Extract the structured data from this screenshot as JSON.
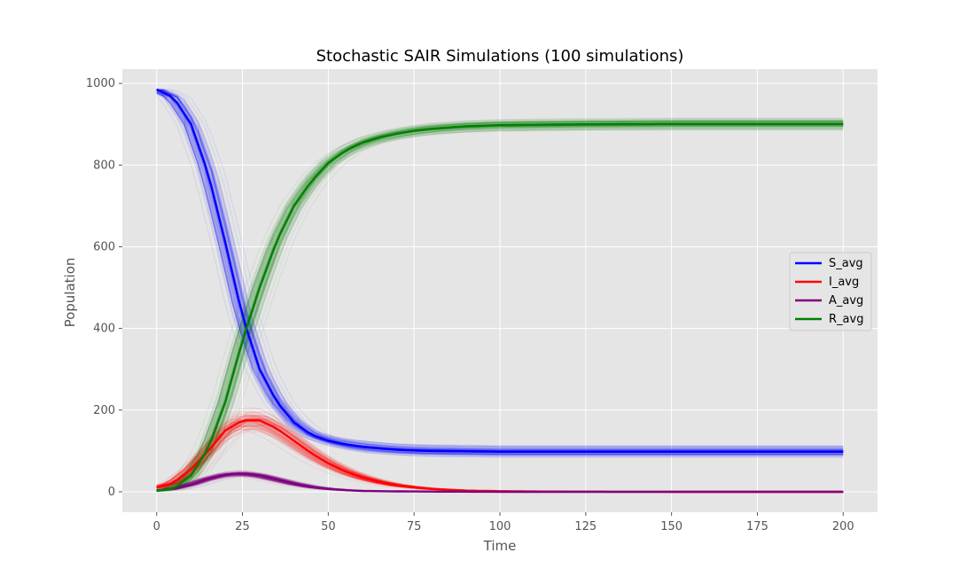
{
  "chart_data": {
    "type": "line",
    "title": "Stochastic SAIR Simulations (100 simulations)",
    "xlabel": "Time",
    "ylabel": "Population",
    "xlim": [
      -10,
      210
    ],
    "ylim": [
      -50,
      1035
    ],
    "xticks": [
      0,
      25,
      50,
      75,
      100,
      125,
      150,
      175,
      200
    ],
    "yticks": [
      0,
      200,
      400,
      600,
      800,
      1000
    ],
    "grid": true,
    "legend_position": "center-right",
    "n_simulations": 100,
    "series": [
      {
        "name": "S_avg",
        "color": "#0000ff",
        "x": [
          0,
          5,
          10,
          15,
          20,
          25,
          30,
          35,
          40,
          45,
          50,
          55,
          60,
          65,
          70,
          75,
          80,
          90,
          100,
          125,
          150,
          175,
          200
        ],
        "y": [
          985,
          965,
          900,
          780,
          610,
          430,
          300,
          220,
          170,
          140,
          125,
          116,
          110,
          106,
          103,
          101,
          100,
          99,
          98,
          98,
          98,
          98,
          98
        ]
      },
      {
        "name": "I_avg",
        "color": "#ff0000",
        "x": [
          0,
          5,
          10,
          15,
          20,
          25,
          30,
          35,
          40,
          45,
          50,
          55,
          60,
          65,
          70,
          75,
          80,
          90,
          100,
          110,
          125,
          150,
          175,
          200
        ],
        "y": [
          10,
          22,
          55,
          100,
          150,
          175,
          175,
          155,
          125,
          95,
          70,
          50,
          35,
          24,
          16,
          11,
          7,
          3,
          1.5,
          0.7,
          0.3,
          0,
          0,
          0
        ]
      },
      {
        "name": "A_avg",
        "color": "#800080",
        "x": [
          0,
          5,
          10,
          15,
          20,
          25,
          30,
          35,
          40,
          45,
          50,
          55,
          60,
          70,
          80,
          100,
          125,
          150,
          175,
          200
        ],
        "y": [
          3,
          8,
          18,
          32,
          42,
          45,
          40,
          30,
          20,
          12,
          7,
          4,
          2,
          1,
          0.5,
          0,
          0,
          0,
          0,
          0
        ]
      },
      {
        "name": "R_avg",
        "color": "#008000",
        "x": [
          0,
          5,
          10,
          15,
          20,
          25,
          30,
          35,
          40,
          45,
          50,
          55,
          60,
          65,
          70,
          75,
          80,
          90,
          100,
          125,
          150,
          175,
          200
        ],
        "y": [
          2,
          8,
          40,
          105,
          220,
          370,
          500,
          615,
          700,
          760,
          805,
          835,
          855,
          868,
          877,
          884,
          889,
          895,
          898,
          900,
          901,
          901,
          901
        ]
      }
    ]
  }
}
